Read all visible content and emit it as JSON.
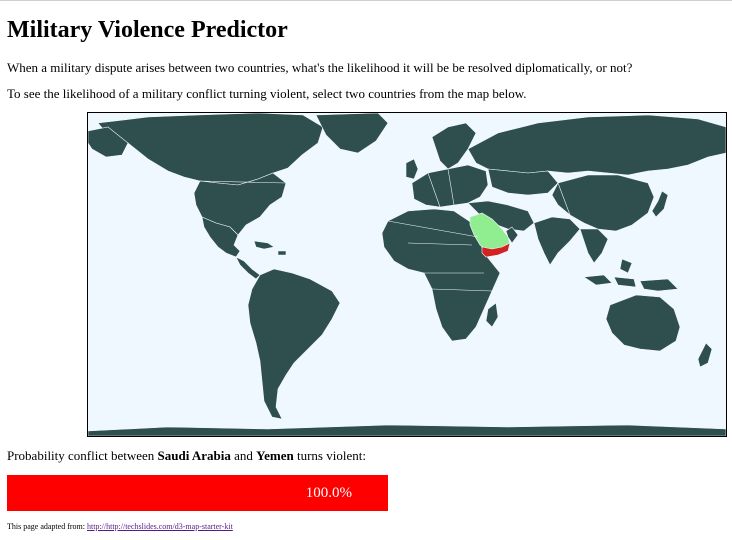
{
  "title": "Military Violence Predictor",
  "intro": "When a military dispute arises between two countries, what's the likelihood it will be be resolved diplomatically, or not?",
  "instruction": "To see the likelihood of a military conflict turning violent, select two countries from the the map below.",
  "map": {
    "ocean_color": "#f0f8ff",
    "land_color": "#2f4f4f",
    "country_a_color": "#90ee90",
    "country_b_color": "#d22222",
    "selected": [
      "Saudi Arabia",
      "Yemen"
    ]
  },
  "result": {
    "prefix": "Probability conflict between",
    "country_a": "Saudi Arabia",
    "connector": "and",
    "country_b": "Yemen",
    "suffix": "turns violent:",
    "probability": 1.0,
    "probability_label": "100.0%",
    "bar_color": "#ff0000"
  },
  "footer": {
    "prefix": "This page adapted from:",
    "link_text": "http://http://techslides.com/d3-map-starter-kit"
  }
}
